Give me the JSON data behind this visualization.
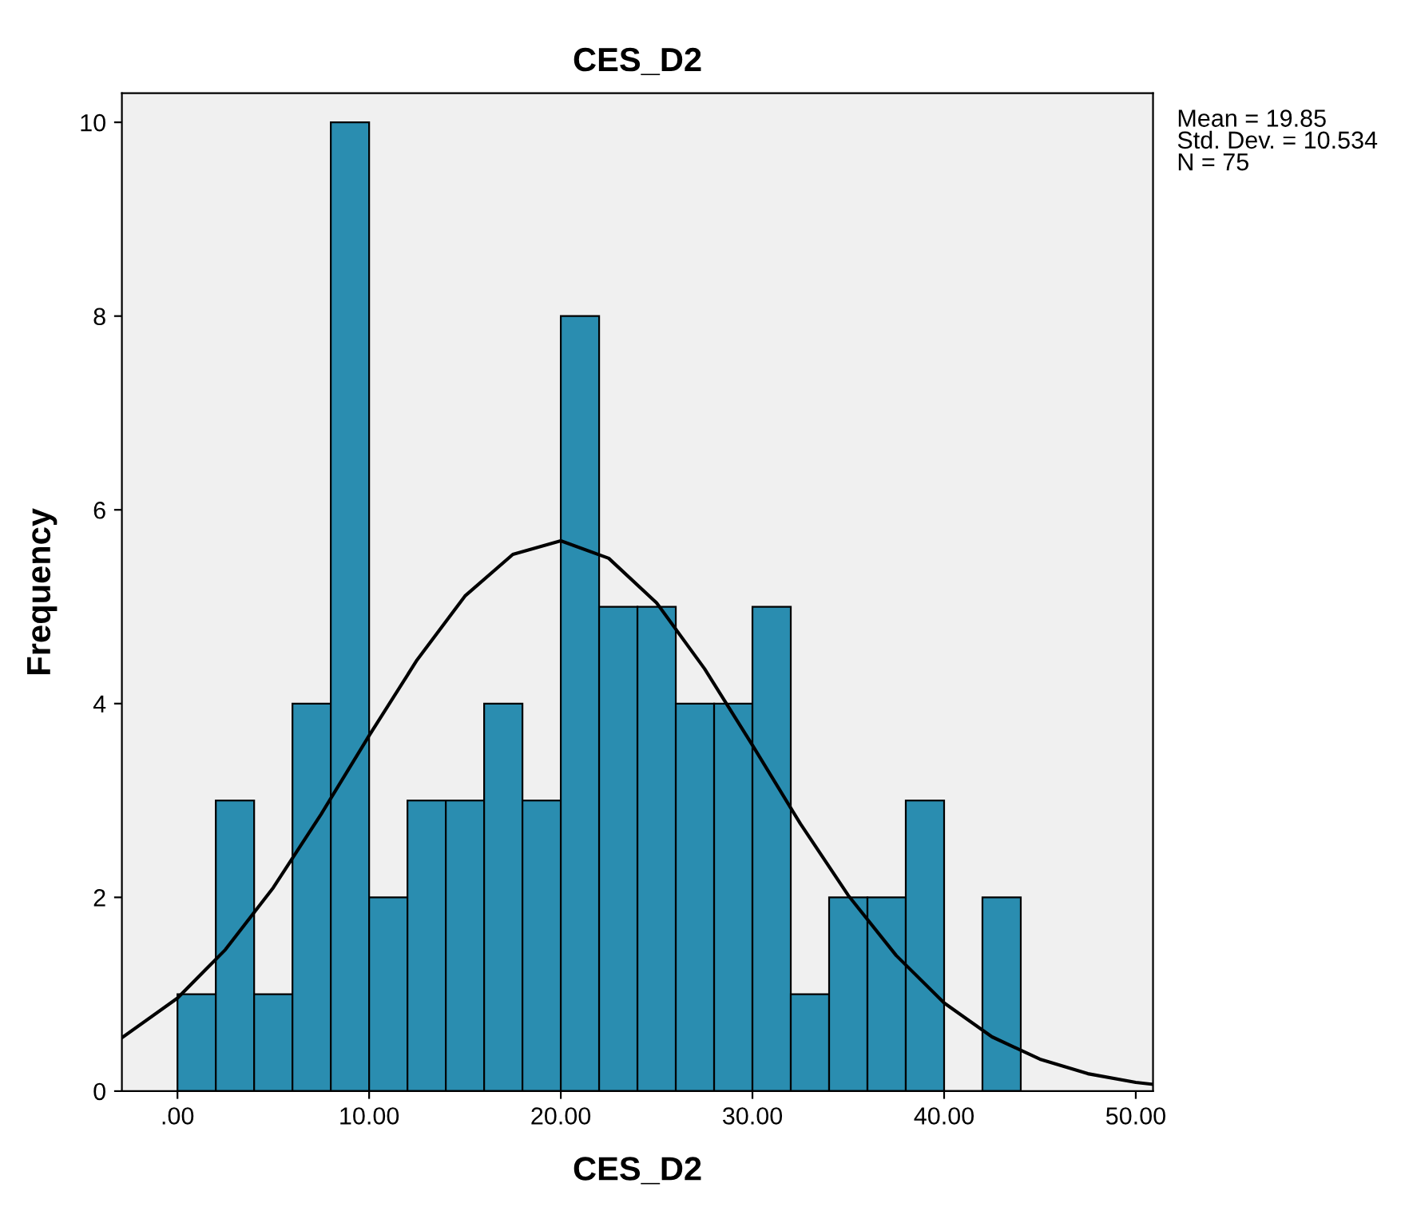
{
  "chart_data": {
    "type": "histogram",
    "title": "CES_D2",
    "xlabel": "CES_D2",
    "ylabel": "Frequency",
    "series": [
      {
        "color": "#2a8db0",
        "bins": [
          0,
          2,
          4,
          6,
          8,
          10,
          12,
          14,
          16,
          18,
          20,
          22,
          24,
          26,
          28,
          30,
          32,
          34,
          36,
          38,
          40,
          42,
          44
        ],
        "values": [
          1,
          3,
          1,
          4,
          10,
          2,
          3,
          3,
          4,
          3,
          8,
          5,
          5,
          4,
          4,
          5,
          1,
          2,
          2,
          3,
          0,
          2
        ]
      },
      {
        "type": "line",
        "color": "#000000",
        "x": [
          -2.9,
          0,
          2.5,
          5,
          7.5,
          10,
          12.5,
          15,
          17.5,
          20,
          22.5,
          25,
          27.5,
          30,
          32.5,
          35,
          37.5,
          40,
          42.5,
          45,
          47.5,
          50,
          50.9
        ],
        "values": [
          0.55,
          0.96,
          1.46,
          2.1,
          2.86,
          3.67,
          4.45,
          5.11,
          5.54,
          5.68,
          5.5,
          5.04,
          4.36,
          3.57,
          2.76,
          2.02,
          1.4,
          0.91,
          0.56,
          0.33,
          0.18,
          0.09,
          0.07
        ]
      }
    ],
    "xlim": [
      -2.9,
      50.9
    ],
    "xticks": [
      {
        "value": 0,
        "label": ".00"
      },
      {
        "value": 10,
        "label": "10.00"
      },
      {
        "value": 20,
        "label": "20.00"
      },
      {
        "value": 30,
        "label": "30.00"
      },
      {
        "value": 40,
        "label": "40.00"
      },
      {
        "value": 50,
        "label": "50.00"
      }
    ],
    "ylim": [
      0,
      10.3
    ],
    "yticks": [
      0,
      2,
      4,
      6,
      8,
      10
    ],
    "grid": false,
    "legend": false,
    "annotations": [
      "Mean = 19.85",
      "Std. Dev. = 10.534",
      "N = 75"
    ]
  }
}
